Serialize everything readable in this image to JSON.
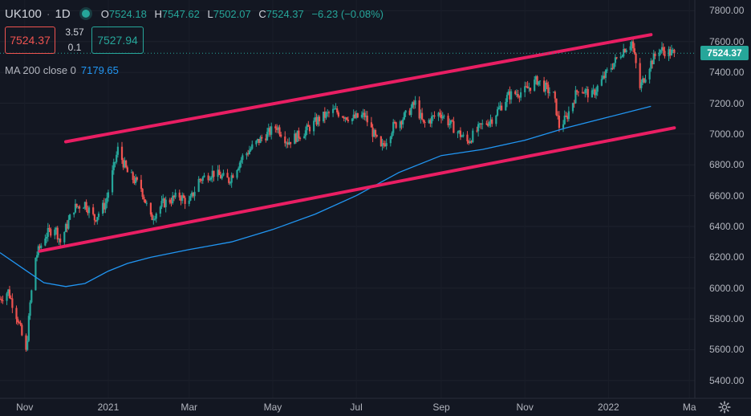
{
  "header": {
    "symbol": "UK100",
    "separator": "·",
    "interval": "1D",
    "open_label": "O",
    "open": "7524.18",
    "high_label": "H",
    "high": "7547.62",
    "low_label": "L",
    "low": "7502.07",
    "close_label": "C",
    "close": "7524.37",
    "change": "−6.23 (−0.08%)"
  },
  "trade": {
    "sell_price": "7524.37",
    "spread_top": "3.57",
    "spread_bottom": "0.1",
    "buy_price": "7527.94"
  },
  "indicator": {
    "label": "MA 200 close 0",
    "value": "7179.65",
    "color": "#2196f3"
  },
  "last_price_tag": "7524.37",
  "colors": {
    "up": "#26a69a",
    "down": "#ef5350",
    "channel": "#e91e63",
    "ma": "#2196f3",
    "background": "#131722"
  },
  "chart_data": {
    "type": "candlestick",
    "y_ticks": [
      "7800.00",
      "7600.00",
      "7400.00",
      "7200.00",
      "7000.00",
      "6800.00",
      "6600.00",
      "6400.00",
      "6200.00",
      "6000.00",
      "5800.00",
      "5600.00",
      "5400.00"
    ],
    "x_ticks": [
      "Nov",
      "2021",
      "Mar",
      "May",
      "Jul",
      "Sep",
      "Nov",
      "2022",
      "Ma"
    ],
    "ylim": [
      5300,
      7870
    ],
    "xlim": [
      "2020-10-14",
      "2022-03-05"
    ],
    "last_close": 7524.37,
    "channel_lines": [
      {
        "name": "upper",
        "from": {
          "x": "2020-12-01",
          "y": 6950
        },
        "to": {
          "x": "2022-02-01",
          "y": 7645
        }
      },
      {
        "name": "lower",
        "from": {
          "x": "2020-11-12",
          "y": 6240
        },
        "to": {
          "x": "2022-02-18",
          "y": 7040
        }
      }
    ],
    "ma_points": [
      {
        "x": "2020-10-14",
        "y": 6230
      },
      {
        "x": "2020-11-01",
        "y": 6120
      },
      {
        "x": "2020-11-15",
        "y": 6035
      },
      {
        "x": "2020-12-01",
        "y": 6010
      },
      {
        "x": "2020-12-15",
        "y": 6030
      },
      {
        "x": "2021-01-01",
        "y": 6110
      },
      {
        "x": "2021-01-15",
        "y": 6160
      },
      {
        "x": "2021-02-01",
        "y": 6200
      },
      {
        "x": "2021-03-01",
        "y": 6250
      },
      {
        "x": "2021-04-01",
        "y": 6300
      },
      {
        "x": "2021-05-01",
        "y": 6380
      },
      {
        "x": "2021-06-01",
        "y": 6480
      },
      {
        "x": "2021-07-01",
        "y": 6600
      },
      {
        "x": "2021-08-01",
        "y": 6750
      },
      {
        "x": "2021-09-01",
        "y": 6860
      },
      {
        "x": "2021-10-01",
        "y": 6900
      },
      {
        "x": "2021-11-01",
        "y": 6960
      },
      {
        "x": "2021-12-01",
        "y": 7040
      },
      {
        "x": "2022-01-01",
        "y": 7110
      },
      {
        "x": "2022-02-01",
        "y": 7180
      }
    ],
    "price_path": [
      {
        "x": "2020-10-14",
        "y": 5930
      },
      {
        "x": "2020-10-20",
        "y": 5980
      },
      {
        "x": "2020-10-27",
        "y": 5800
      },
      {
        "x": "2020-11-02",
        "y": 5580
      },
      {
        "x": "2020-11-05",
        "y": 5900
      },
      {
        "x": "2020-11-09",
        "y": 6200
      },
      {
        "x": "2020-11-16",
        "y": 6340
      },
      {
        "x": "2020-11-23",
        "y": 6400
      },
      {
        "x": "2020-11-27",
        "y": 6300
      },
      {
        "x": "2020-12-07",
        "y": 6520
      },
      {
        "x": "2020-12-15",
        "y": 6550
      },
      {
        "x": "2020-12-22",
        "y": 6450
      },
      {
        "x": "2020-12-30",
        "y": 6550
      },
      {
        "x": "2021-01-08",
        "y": 6900
      },
      {
        "x": "2021-01-15",
        "y": 6750
      },
      {
        "x": "2021-01-25",
        "y": 6650
      },
      {
        "x": "2021-02-01",
        "y": 6450
      },
      {
        "x": "2021-02-10",
        "y": 6550
      },
      {
        "x": "2021-02-22",
        "y": 6600
      },
      {
        "x": "2021-03-01",
        "y": 6550
      },
      {
        "x": "2021-03-08",
        "y": 6700
      },
      {
        "x": "2021-03-18",
        "y": 6750
      },
      {
        "x": "2021-03-30",
        "y": 6700
      },
      {
        "x": "2021-04-09",
        "y": 6850
      },
      {
        "x": "2021-04-20",
        "y": 6950
      },
      {
        "x": "2021-05-04",
        "y": 7050
      },
      {
        "x": "2021-05-12",
        "y": 6950
      },
      {
        "x": "2021-05-25",
        "y": 7020
      },
      {
        "x": "2021-06-04",
        "y": 7100
      },
      {
        "x": "2021-06-15",
        "y": 7150
      },
      {
        "x": "2021-06-28",
        "y": 7100
      },
      {
        "x": "2021-07-07",
        "y": 7120
      },
      {
        "x": "2021-07-19",
        "y": 6900
      },
      {
        "x": "2021-07-28",
        "y": 7050
      },
      {
        "x": "2021-08-06",
        "y": 7120
      },
      {
        "x": "2021-08-13",
        "y": 7200
      },
      {
        "x": "2021-08-19",
        "y": 7060
      },
      {
        "x": "2021-08-31",
        "y": 7140
      },
      {
        "x": "2021-09-09",
        "y": 7050
      },
      {
        "x": "2021-09-20",
        "y": 6950
      },
      {
        "x": "2021-09-30",
        "y": 7050
      },
      {
        "x": "2021-10-08",
        "y": 7100
      },
      {
        "x": "2021-10-20",
        "y": 7250
      },
      {
        "x": "2021-11-01",
        "y": 7280
      },
      {
        "x": "2021-11-10",
        "y": 7350
      },
      {
        "x": "2021-11-22",
        "y": 7250
      },
      {
        "x": "2021-11-26",
        "y": 7050
      },
      {
        "x": "2021-12-01",
        "y": 7100
      },
      {
        "x": "2021-12-10",
        "y": 7300
      },
      {
        "x": "2021-12-20",
        "y": 7250
      },
      {
        "x": "2021-12-31",
        "y": 7400
      },
      {
        "x": "2022-01-12",
        "y": 7550
      },
      {
        "x": "2022-01-18",
        "y": 7600
      },
      {
        "x": "2022-01-24",
        "y": 7300
      },
      {
        "x": "2022-01-31",
        "y": 7450
      },
      {
        "x": "2022-02-07",
        "y": 7550
      },
      {
        "x": "2022-02-14",
        "y": 7530
      },
      {
        "x": "2022-02-18",
        "y": 7524
      }
    ]
  }
}
